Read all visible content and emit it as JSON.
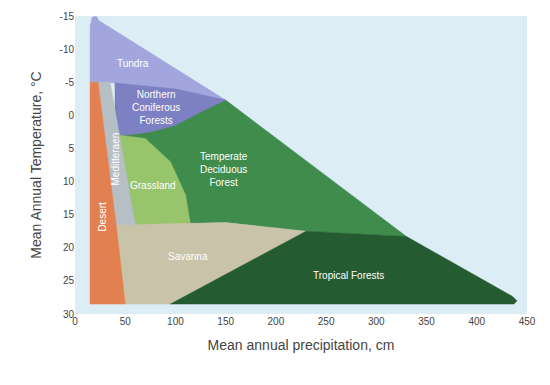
{
  "chart_data": {
    "type": "area",
    "x_label": "Mean annual precipitation, cm",
    "y_label": "Mean Annual Temperature, °C",
    "xlim": [
      0,
      450
    ],
    "xticks": [
      0,
      50,
      100,
      150,
      200,
      250,
      300,
      350,
      400,
      450
    ],
    "ylim": [
      30,
      -15
    ],
    "yticks": [
      -15,
      -10,
      -5,
      0,
      5,
      10,
      15,
      20,
      25,
      30
    ],
    "grid": false,
    "series": [
      {
        "name": "Temperate Deciduous Forest",
        "color": "#3f8c4c",
        "x": [
          40,
          150,
          330,
          230,
          150,
          60,
          40
        ],
        "y": [
          -4.9,
          -2.3,
          18.3,
          17.5,
          16.2,
          16.5,
          3
        ]
      },
      {
        "name": "Tundra",
        "color": "#a3a6dc",
        "x": [
          15,
          15,
          17,
          21,
          24,
          100,
          150,
          120,
          100,
          40
        ],
        "y": [
          -5,
          -13.5,
          -14.8,
          -15,
          -14.3,
          -7,
          -2.3,
          -3.3,
          -4,
          -4.9
        ]
      },
      {
        "name": "Northern Coniferous Forests",
        "color": "#7d80c2",
        "x": [
          40,
          100,
          150,
          125,
          100,
          75,
          50,
          42
        ],
        "y": [
          -4.9,
          -4,
          -2.3,
          -0.5,
          1.5,
          2.5,
          3,
          3
        ]
      },
      {
        "name": "Grassland",
        "color": "#98c46c",
        "x": [
          44,
          70,
          95,
          110,
          115,
          60
        ],
        "y": [
          3,
          3.5,
          7,
          12,
          16.5,
          16.5
        ]
      },
      {
        "name": "Savanna",
        "color": "#c9c3a9",
        "x": [
          41,
          60,
          150,
          230,
          95,
          50
        ],
        "y": [
          16.5,
          16.5,
          16.2,
          17.5,
          28.5,
          28.5
        ]
      },
      {
        "name": "Tropical Forests",
        "color": "#255b30",
        "x": [
          95,
          230,
          330,
          435,
          440,
          437
        ],
        "y": [
          28.5,
          17.5,
          18.3,
          27.3,
          28,
          28.5
        ]
      },
      {
        "name": "Meditteraen",
        "color": "#b7bfc6",
        "x": [
          23,
          35,
          60,
          41
        ],
        "y": [
          -5,
          -5,
          16.5,
          16.5
        ]
      },
      {
        "name": "Desert",
        "color": "#e2804f",
        "x": [
          15,
          23,
          41,
          50,
          15
        ],
        "y": [
          -5,
          -5,
          16.5,
          28.5,
          28.5
        ]
      }
    ]
  }
}
